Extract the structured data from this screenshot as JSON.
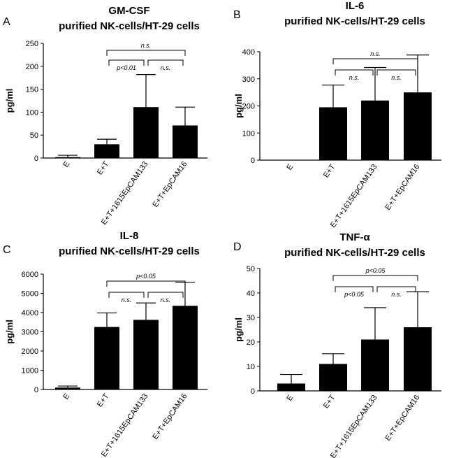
{
  "chart_data": [
    {
      "panel": "A",
      "type": "bar",
      "title": "GM-CSF",
      "subtitle": "purified NK-cells/HT-29 cells",
      "ylabel": "pg/ml",
      "categories": [
        "E",
        "E+T",
        "E+T+1615EpCAM133",
        "E+T+EpCAM16"
      ],
      "values": [
        2,
        30,
        111,
        71
      ],
      "errors": [
        4,
        11,
        71,
        40
      ],
      "ylim": [
        0,
        250
      ],
      "yticks": [
        "0",
        "50",
        "100",
        "150",
        "200",
        "250"
      ],
      "ytick_values": [
        0,
        50,
        100,
        150,
        200,
        250
      ],
      "comparisons": [
        {
          "from": 1,
          "to": 2,
          "label": "p<0.01",
          "level": 1
        },
        {
          "from": 2,
          "to": 3,
          "label": "n.s.",
          "level": 1
        },
        {
          "from": 1,
          "to": 3,
          "label": "n.s.",
          "level": 2
        }
      ]
    },
    {
      "panel": "B",
      "type": "bar",
      "title": "IL-6",
      "subtitle": "purified NK-cells/HT-29 cells",
      "ylabel": "pg/ml",
      "categories": [
        "E",
        "E+T",
        "E+T+1615EpCAM133",
        "E+T+EpCAM16"
      ],
      "values": [
        0,
        195,
        220,
        250
      ],
      "errors": [
        0,
        82,
        122,
        138
      ],
      "ylim": [
        0,
        400
      ],
      "yticks": [
        "0",
        "100",
        "200",
        "300",
        "400"
      ],
      "ytick_values": [
        0,
        100,
        200,
        300,
        400
      ],
      "comparisons": [
        {
          "from": 1,
          "to": 2,
          "label": "n.s.",
          "level": 1
        },
        {
          "from": 2,
          "to": 3,
          "label": "n.s.",
          "level": 1
        },
        {
          "from": 1,
          "to": 3,
          "label": "n.s.",
          "level": 2
        }
      ]
    },
    {
      "panel": "C",
      "type": "bar",
      "title": "IL-8",
      "subtitle": "purified NK-cells/HT-29 cells",
      "ylabel": "pg/ml",
      "categories": [
        "E",
        "E+T",
        "E+T+1615EpCAM133",
        "E+T+EpCAM16"
      ],
      "values": [
        100,
        3250,
        3620,
        4350
      ],
      "errors": [
        80,
        730,
        880,
        1230
      ],
      "ylim": [
        0,
        6000
      ],
      "yticks": [
        "0",
        "1000",
        "2000",
        "3000",
        "4000",
        "5000",
        "6000"
      ],
      "ytick_values": [
        0,
        1000,
        2000,
        3000,
        4000,
        5000,
        6000
      ],
      "comparisons": [
        {
          "from": 1,
          "to": 2,
          "label": "n.s.",
          "level": 1
        },
        {
          "from": 2,
          "to": 3,
          "label": "n.s.",
          "level": 1
        },
        {
          "from": 1,
          "to": 3,
          "label": "p<0.05",
          "level": 2
        }
      ]
    },
    {
      "panel": "D",
      "type": "bar",
      "title": "TNF-α",
      "subtitle": "purified NK-cells/HT-29 cells",
      "ylabel": "pg/ml",
      "categories": [
        "E",
        "E+T",
        "E+T+1615EpCAM133",
        "E+T+EpCAM16"
      ],
      "values": [
        3,
        11,
        21,
        26
      ],
      "errors": [
        3.7,
        4.2,
        13,
        14.5
      ],
      "ylim": [
        0,
        50
      ],
      "yticks": [
        "0",
        "10",
        "20",
        "30",
        "40",
        "50"
      ],
      "ytick_values": [
        0,
        10,
        20,
        30,
        40,
        50
      ],
      "comparisons": [
        {
          "from": 1,
          "to": 2,
          "label": "p<0.05",
          "level": 1
        },
        {
          "from": 2,
          "to": 3,
          "label": "n.s.",
          "level": 1
        },
        {
          "from": 1,
          "to": 3,
          "label": "p<0.05",
          "level": 2
        }
      ]
    }
  ]
}
